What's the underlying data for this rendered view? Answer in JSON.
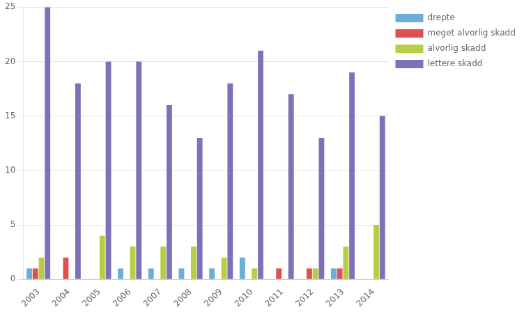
{
  "chart_data": {
    "type": "bar",
    "categories": [
      "2003",
      "2004",
      "2005",
      "2006",
      "2007",
      "2008",
      "2009",
      "2010",
      "2011",
      "2012",
      "2013",
      "2014"
    ],
    "series": [
      {
        "name": "drepte",
        "color": "#6baed6",
        "values": [
          1,
          0,
          0,
          1,
          1,
          1,
          1,
          2,
          0,
          0,
          1,
          0
        ]
      },
      {
        "name": "meget alvorlig skadd",
        "color": "#e05050",
        "values": [
          1,
          2,
          0,
          0,
          0,
          0,
          0,
          0,
          1,
          1,
          1,
          0
        ]
      },
      {
        "name": "alvorlig skadd",
        "color": "#b8cc44",
        "values": [
          2,
          0,
          4,
          3,
          3,
          3,
          2,
          1,
          0,
          1,
          3,
          5
        ]
      },
      {
        "name": "lettere skadd",
        "color": "#8070b8",
        "values": [
          25,
          18,
          20,
          20,
          16,
          13,
          18,
          21,
          17,
          13,
          19,
          15
        ]
      }
    ],
    "ylim": [
      0,
      25
    ],
    "yticks": [
      0,
      5,
      10,
      15,
      20,
      25
    ],
    "grid": true,
    "legend": "right"
  }
}
